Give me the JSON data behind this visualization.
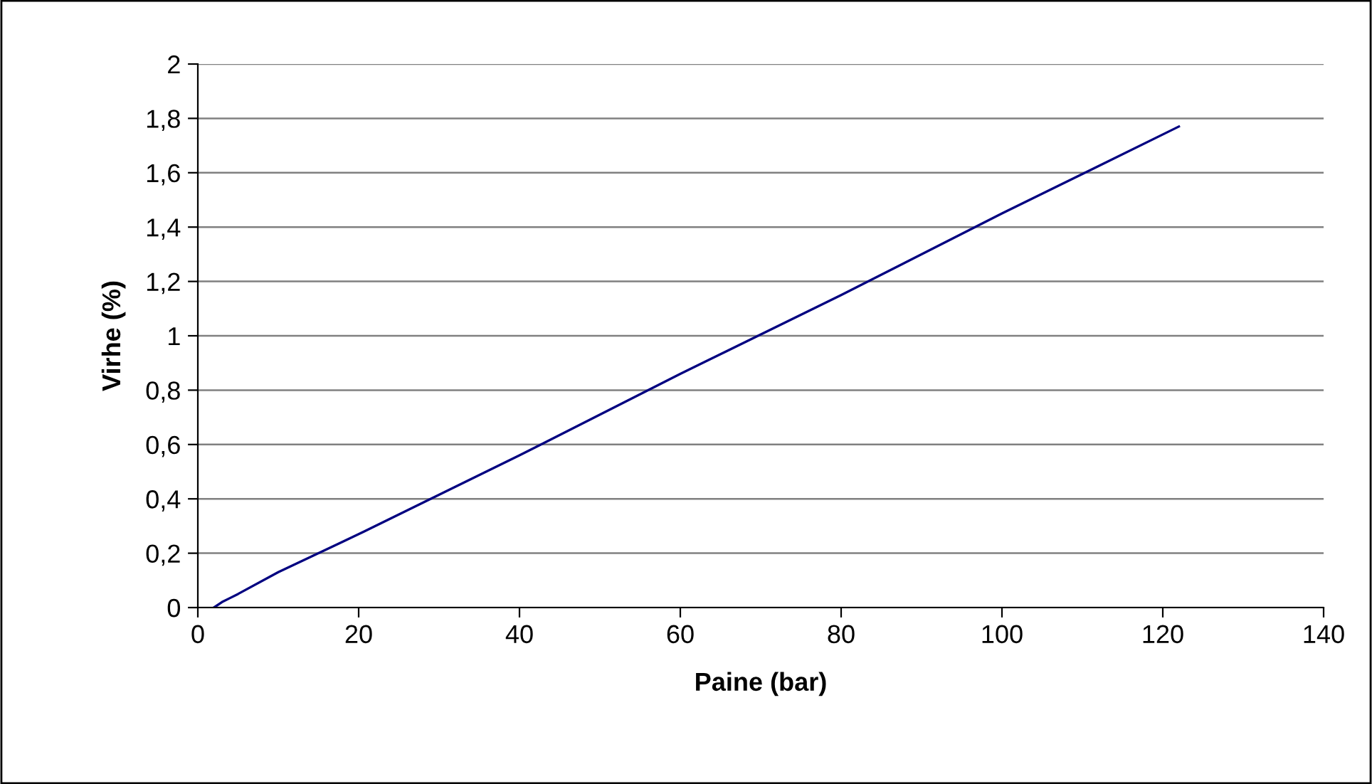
{
  "chart_data": {
    "type": "line",
    "xlabel": "Paine (bar)",
    "ylabel": "Virhe (%)",
    "x": [
      2,
      3,
      4,
      5,
      10,
      20,
      40,
      60,
      80,
      100,
      122
    ],
    "series": [
      {
        "color": "#000080",
        "values": [
          0,
          0.02,
          0.035,
          0.05,
          0.13,
          0.27,
          0.56,
          0.86,
          1.15,
          1.45,
          1.77
        ]
      }
    ],
    "xlim": [
      0,
      140
    ],
    "xticks": [
      0,
      20,
      40,
      60,
      80,
      100,
      120,
      140
    ],
    "ylim": [
      0,
      2
    ],
    "yticks": [
      0,
      {
        "value": 0.2,
        "label": "0,2"
      },
      {
        "value": 0.4,
        "label": "0,4"
      },
      {
        "value": 0.6,
        "label": "0,6"
      },
      {
        "value": 0.8,
        "label": "0,8"
      },
      1,
      {
        "value": 1.2,
        "label": "1,2"
      },
      {
        "value": 1.4,
        "label": "1,4"
      },
      {
        "value": 1.6,
        "label": "1,6"
      },
      {
        "value": 1.8,
        "label": "1,8"
      },
      2
    ],
    "grid": "y",
    "legend": false,
    "marker": "none",
    "line_style": "solid"
  }
}
